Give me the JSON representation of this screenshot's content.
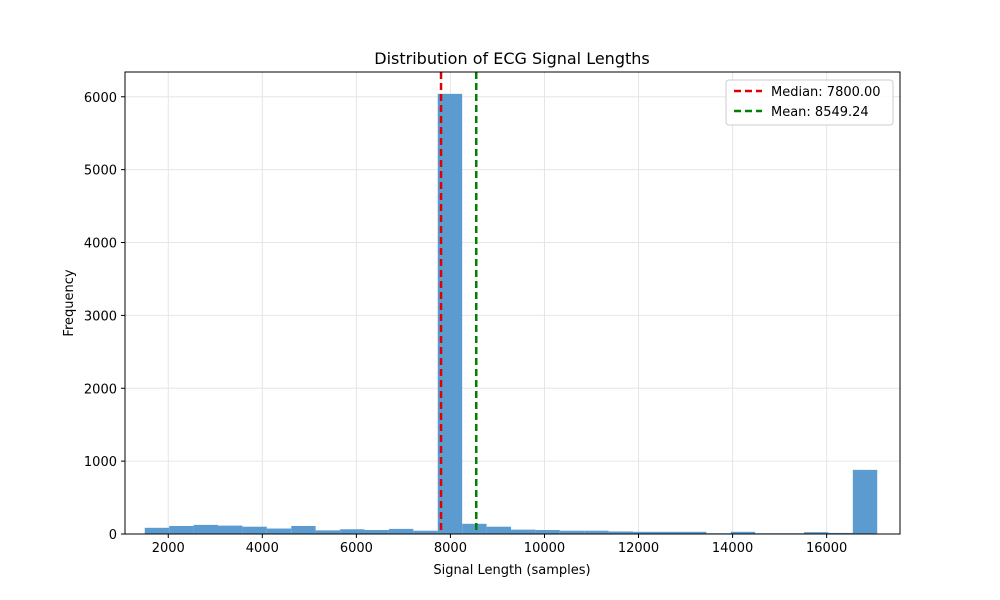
{
  "chart_data": {
    "type": "bar",
    "title": "Distribution of ECG Signal Lengths",
    "xlabel": "Signal Length (samples)",
    "ylabel": "Frequency",
    "xlim": [
      1080,
      17560
    ],
    "ylim": [
      0,
      6340
    ],
    "xticks": [
      2000,
      4000,
      6000,
      8000,
      10000,
      12000,
      14000,
      16000
    ],
    "yticks": [
      0,
      1000,
      2000,
      3000,
      4000,
      5000,
      6000
    ],
    "grid": true,
    "bar_color": "#5b9bd0",
    "bins": {
      "start": 1500,
      "width": 519.2,
      "counts": [
        85,
        110,
        125,
        115,
        100,
        75,
        110,
        50,
        65,
        55,
        70,
        45,
        6040,
        140,
        100,
        60,
        55,
        45,
        45,
        35,
        30,
        30,
        30,
        10,
        30,
        10,
        10,
        25,
        15,
        880
      ]
    },
    "lines": [
      {
        "label": "Median: 7800.00",
        "x": 7800,
        "color": "#e00000"
      },
      {
        "label": "Mean: 8549.24",
        "x": 8549.24,
        "color": "#008000"
      }
    ],
    "legend_position": "upper right"
  }
}
